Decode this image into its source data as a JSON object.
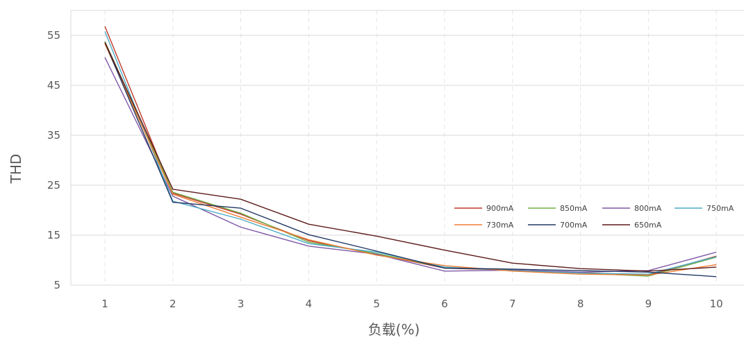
{
  "chart_data": {
    "type": "line",
    "xlabel": "负载(%)",
    "ylabel": "THD",
    "categories": [
      "1",
      "2",
      "3",
      "4",
      "5",
      "6",
      "7",
      "8",
      "9",
      "10"
    ],
    "yticks": [
      5,
      15,
      25,
      35,
      45,
      55
    ],
    "ylim": [
      5,
      60
    ],
    "grid": true,
    "legend_position": "right, inside plot area",
    "series": [
      {
        "name": "900mA",
        "color": "#c0392b",
        "values": [
          56.8,
          23.4,
          19.2,
          13.9,
          11.2,
          8.4,
          8.0,
          7.5,
          7.0,
          10.8
        ]
      },
      {
        "name": "850mA",
        "color": "#70ad47",
        "values": [
          53.8,
          23.6,
          19.4,
          13.6,
          11.3,
          8.5,
          8.0,
          7.4,
          6.8,
          10.6
        ]
      },
      {
        "name": "800mA",
        "color": "#7e57a6",
        "values": [
          50.6,
          22.8,
          16.6,
          12.8,
          11.2,
          7.8,
          8.0,
          7.6,
          7.9,
          11.6
        ]
      },
      {
        "name": "750mA",
        "color": "#4bacc6",
        "values": [
          55.8,
          21.8,
          18.2,
          13.3,
          11.6,
          8.6,
          7.9,
          7.4,
          7.2,
          10.7
        ]
      },
      {
        "name": "730mA",
        "color": "#ed7d31",
        "values": [
          53.3,
          23.2,
          18.6,
          14.1,
          11.0,
          8.9,
          7.8,
          7.2,
          7.0,
          9.1
        ]
      },
      {
        "name": "700mA",
        "color": "#203864",
        "values": [
          53.6,
          21.6,
          20.4,
          15.1,
          11.8,
          8.4,
          8.2,
          7.9,
          7.6,
          6.7
        ]
      },
      {
        "name": "650mA",
        "color": "#5c1a1a",
        "values": [
          53.6,
          24.2,
          22.2,
          17.2,
          14.8,
          12.0,
          9.4,
          8.3,
          7.8,
          8.6
        ]
      }
    ]
  }
}
